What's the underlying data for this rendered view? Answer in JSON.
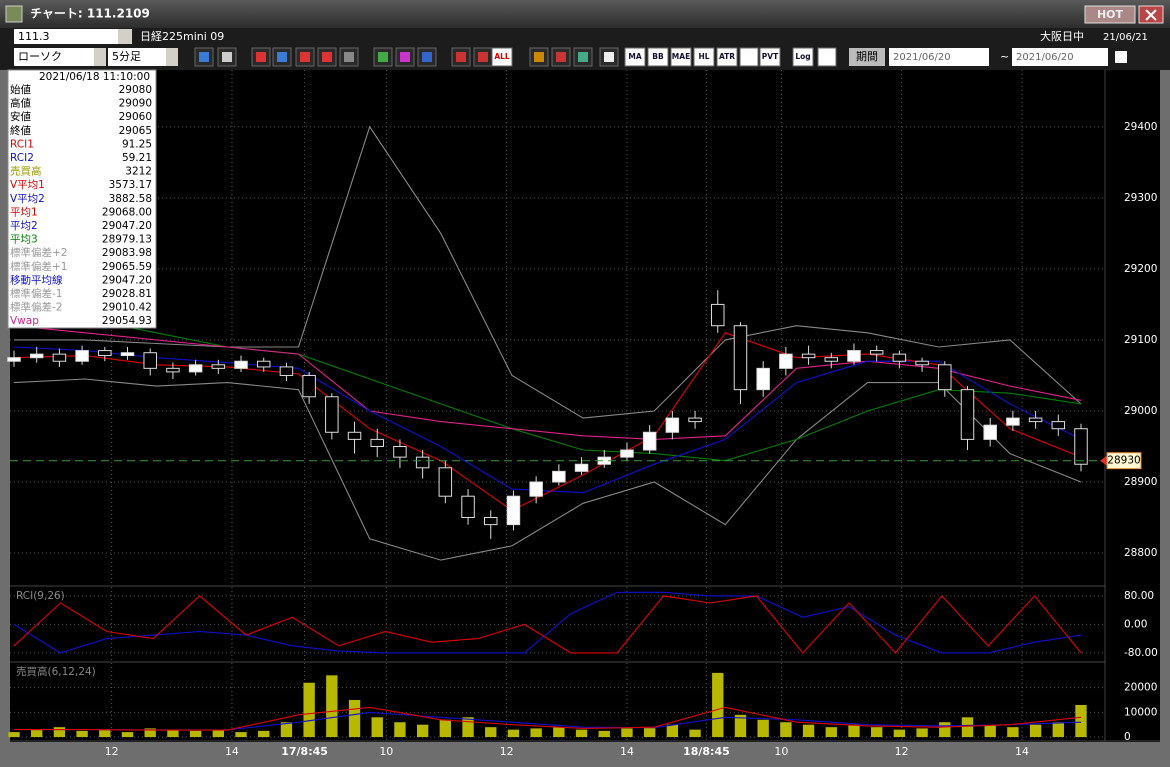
{
  "window": {
    "title": "チャート: 111.2109",
    "hot": "HOT"
  },
  "toolbar": {
    "symbol": "111.3",
    "instrument": "日経225mini 09",
    "session": "大阪日中",
    "date": "21/06/21",
    "chart_kind": "ローソク",
    "interval": "5分足",
    "period": "期間",
    "from": "2021/06/20",
    "tilde": "~",
    "to": "2021/06/20",
    "buttons": [
      "ALL",
      "MA",
      "BB",
      "MAE",
      "HL",
      "ATR",
      "PVT",
      "Log"
    ]
  },
  "info_panel": {
    "datetime": "2021/06/18 11:10:00",
    "rows": [
      {
        "label": "始値",
        "value": "29080",
        "color": "#000000"
      },
      {
        "label": "高値",
        "value": "29090",
        "color": "#000000"
      },
      {
        "label": "安値",
        "value": "29060",
        "color": "#000000"
      },
      {
        "label": "終値",
        "value": "29065",
        "color": "#000000"
      },
      {
        "label": "RCI1",
        "value": "91.25",
        "color": "#e00000"
      },
      {
        "label": "RCI2",
        "value": "59.21",
        "color": "#1010d0"
      },
      {
        "label": "売買高",
        "value": "3212",
        "color": "#9a9a00"
      },
      {
        "label": "V平均1",
        "value": "3573.17",
        "color": "#e00000"
      },
      {
        "label": "V平均2",
        "value": "3882.58",
        "color": "#1010d0"
      },
      {
        "label": "平均1",
        "value": "29068.00",
        "color": "#e00000"
      },
      {
        "label": "平均2",
        "value": "29047.20",
        "color": "#1010d0"
      },
      {
        "label": "平均3",
        "value": "28979.13",
        "color": "#008000"
      },
      {
        "label": "標準偏差+2",
        "value": "29083.98",
        "color": "#999999"
      },
      {
        "label": "標準偏差+1",
        "value": "29065.59",
        "color": "#999999"
      },
      {
        "label": "移動平均線",
        "value": "29047.20",
        "color": "#1010d0"
      },
      {
        "label": "標準偏差-1",
        "value": "29028.81",
        "color": "#999999"
      },
      {
        "label": "標準偏差-2",
        "value": "29010.42",
        "color": "#999999"
      },
      {
        "label": "Vwap",
        "value": "29054.93",
        "color": "#e0208a"
      }
    ]
  },
  "chart_data": [
    {
      "type": "candlestick",
      "xlim": [
        0,
        47
      ],
      "ylim": [
        28755,
        29480
      ],
      "yticks": [
        28800,
        28900,
        29000,
        29100,
        29200,
        29300,
        29400
      ],
      "grid": true,
      "xticks": [
        {
          "value": 4.3,
          "label": "12"
        },
        {
          "value": 9.6,
          "label": "14"
        },
        {
          "value": 12.8,
          "label": "17/8:45"
        },
        {
          "value": 16.4,
          "label": "10"
        },
        {
          "value": 21.7,
          "label": "12"
        },
        {
          "value": 27.0,
          "label": "14"
        },
        {
          "value": 30.5,
          "label": "18/8:45"
        },
        {
          "value": 33.8,
          "label": "10"
        },
        {
          "value": 39.1,
          "label": "12"
        },
        {
          "value": 44.4,
          "label": "14"
        }
      ],
      "current_price": 28930,
      "current_price_color": "#3a9a3a",
      "open": [
        29070,
        29075,
        29080,
        29070,
        29085,
        29078,
        29082,
        29060,
        29055,
        29065,
        29060,
        29070,
        29062,
        29050,
        29020,
        28970,
        28960,
        28950,
        28935,
        28920,
        28880,
        28850,
        28840,
        28880,
        28900,
        28915,
        28925,
        28935,
        28945,
        28970,
        28990,
        29150,
        29120,
        29030,
        29060,
        29080,
        29075,
        29070,
        29085,
        29080,
        29070,
        29065,
        29030,
        28960,
        28980,
        28990,
        28985,
        28975
      ],
      "high": [
        29085,
        29090,
        29088,
        29092,
        29090,
        29090,
        29088,
        29068,
        29072,
        29072,
        29078,
        29075,
        29068,
        29055,
        29025,
        28985,
        28975,
        28960,
        28945,
        28930,
        28890,
        28860,
        28888,
        28908,
        28925,
        28935,
        28945,
        28955,
        28980,
        29000,
        29000,
        29170,
        29125,
        29070,
        29090,
        29092,
        29082,
        29095,
        29092,
        29085,
        29075,
        29070,
        29035,
        28990,
        29000,
        29000,
        28995,
        28982
      ],
      "low": [
        29062,
        29068,
        29062,
        29065,
        29070,
        29072,
        29050,
        29045,
        29050,
        29052,
        29055,
        29055,
        29042,
        29010,
        28960,
        28940,
        28935,
        28920,
        28905,
        28870,
        28840,
        28820,
        28832,
        28870,
        28895,
        28910,
        28920,
        28930,
        28940,
        28960,
        28975,
        29110,
        29010,
        29020,
        29050,
        29065,
        29060,
        29065,
        29070,
        29060,
        29055,
        29020,
        28945,
        28950,
        28972,
        28975,
        28965,
        28915
      ],
      "close": [
        29075,
        29080,
        29070,
        29085,
        29078,
        29082,
        29060,
        29055,
        29065,
        29060,
        29070,
        29062,
        29050,
        29020,
        28970,
        28960,
        28950,
        28935,
        28920,
        28880,
        28850,
        28840,
        28880,
        28900,
        28915,
        28925,
        28935,
        28945,
        28970,
        28990,
        28985,
        29120,
        29030,
        29060,
        29080,
        29075,
        29070,
        29085,
        29080,
        29070,
        29065,
        29030,
        28960,
        28980,
        28990,
        28985,
        28975,
        28925
      ],
      "series": [
        {
          "color": "#888888",
          "values": [
            29100,
            29100,
            29095,
            29090,
            29090,
            29400,
            29250,
            29050,
            28990,
            29000,
            29100,
            29120,
            29110,
            29090,
            29100,
            29010
          ]
        },
        {
          "color": "#888888",
          "values": [
            29040,
            29045,
            29035,
            29040,
            29030,
            28820,
            28790,
            28810,
            28870,
            28900,
            28840,
            28960,
            29040,
            29040,
            28940,
            28900
          ]
        },
        {
          "color": "#008000",
          "values": [
            29150,
            29130,
            29110,
            29090,
            29080,
            29045,
            29010,
            28975,
            28945,
            28940,
            28930,
            28960,
            29000,
            29030,
            29025,
            29010
          ]
        },
        {
          "color": "#e0208a",
          "values": [
            29120,
            29110,
            29100,
            29090,
            29080,
            29000,
            28985,
            28975,
            28965,
            28960,
            28965,
            29060,
            29070,
            29060,
            29035,
            29015
          ]
        },
        {
          "color": "#1010d0",
          "values": [
            29090,
            29085,
            29075,
            29068,
            29060,
            29000,
            28950,
            28890,
            28885,
            28925,
            28960,
            29040,
            29070,
            29070,
            29010,
            28960
          ]
        },
        {
          "color": "#e00000",
          "values": [
            29075,
            29078,
            29065,
            29062,
            29052,
            28975,
            28930,
            28860,
            28910,
            28965,
            29110,
            29075,
            29080,
            29065,
            28975,
            28935
          ]
        }
      ]
    },
    {
      "type": "line",
      "title": "RCI(9,26)",
      "ylim": [
        -100,
        105
      ],
      "yticks": [
        {
          "value": 80,
          "label": "80.00"
        },
        {
          "value": 0,
          "label": "0.00"
        },
        {
          "value": -80,
          "label": "-80.00"
        }
      ],
      "grid": true,
      "series": [
        {
          "color": "#1010d0",
          "values": [
            0,
            -80,
            -40,
            -30,
            -20,
            -30,
            -60,
            -75,
            -80,
            -80,
            -80,
            -80,
            30,
            90,
            90,
            80,
            80,
            20,
            50,
            -30,
            -80,
            -80,
            -50,
            -30
          ]
        },
        {
          "color": "#e00000",
          "values": [
            -60,
            60,
            -20,
            -40,
            80,
            -30,
            20,
            -60,
            -20,
            -50,
            -40,
            0,
            -80,
            -80,
            80,
            60,
            80,
            -80,
            60,
            -80,
            80,
            -60,
            80,
            -80
          ]
        }
      ]
    },
    {
      "type": "bar",
      "title": "売買高(6,12,24)",
      "ylim": [
        -1200,
        30000
      ],
      "yticks": [
        20000,
        10000,
        0
      ],
      "grid": true,
      "color": "#b8b800",
      "values": [
        2000,
        3000,
        4000,
        2500,
        3000,
        2000,
        3500,
        3000,
        2500,
        3000,
        2000,
        2500,
        6000,
        22000,
        25000,
        15000,
        8000,
        6000,
        5000,
        7000,
        8000,
        4000,
        3000,
        3500,
        4000,
        3000,
        2500,
        3500,
        4000,
        5000,
        3000,
        26000,
        9000,
        7000,
        6000,
        5000,
        4000,
        5000,
        4000,
        3000,
        3500,
        6000,
        8000,
        5000,
        4000,
        5000,
        6000,
        13000
      ],
      "series": [
        {
          "color": "#1010d0",
          "values": [
            3000,
            3000,
            2900,
            2900,
            6000,
            10000,
            8000,
            6000,
            4000,
            3800,
            8000,
            7000,
            5000,
            4500,
            5000,
            6000
          ]
        },
        {
          "color": "#e00000",
          "values": [
            3000,
            3000,
            2800,
            2800,
            9000,
            12000,
            7000,
            5000,
            3500,
            4000,
            12000,
            6000,
            4500,
            4000,
            5000,
            8000
          ]
        }
      ]
    }
  ]
}
